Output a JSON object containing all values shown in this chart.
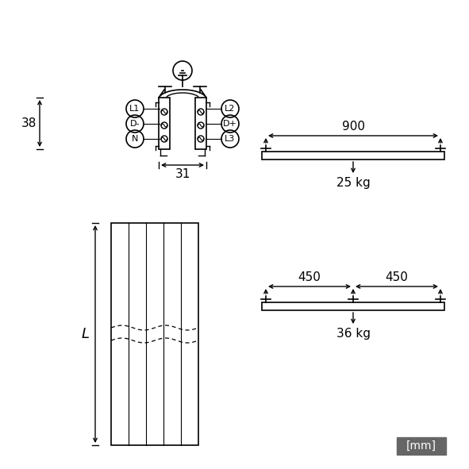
{
  "bg_color": "#ffffff",
  "line_color": "#000000",
  "gray_color": "#666666",
  "light_gray": "#aaaaaa",
  "mm_box_color": "#666666",
  "mm_text_color": "#ffffff",
  "title": "",
  "dim_38": "38",
  "dim_31": "31",
  "dim_L": "L",
  "dim_900": "900",
  "dim_450a": "450",
  "dim_450b": "450",
  "weight_25": "25 kg",
  "weight_36": "36 kg",
  "mm_label": "[mm]",
  "labels_left": [
    "L1",
    "D-",
    "N"
  ],
  "labels_right": [
    "L2",
    "D+",
    "L3"
  ],
  "font_size_dim": 11,
  "font_size_label": 9,
  "font_size_mm": 10
}
